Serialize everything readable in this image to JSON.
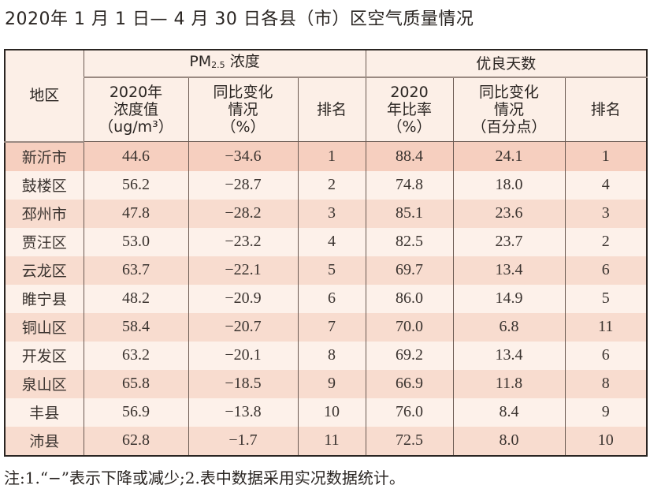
{
  "title": "2020年 1 月 1 日— 4 月 30 日各县（市）区空气质量情况",
  "header": {
    "region": "地区",
    "pm_group": "PM",
    "pm_sub": "2.5",
    "pm_suffix": " 浓度",
    "good_group": "优良天数",
    "pm_cols": [
      "2020年",
      "浓度值",
      "（ug/m³）",
      "同比变化",
      "情况",
      "（%）",
      "排名"
    ],
    "good_cols": [
      "2020",
      "年比率",
      "（%）",
      "同比变化",
      "情况",
      "（百分点）",
      "排名"
    ]
  },
  "rows": [
    [
      "新沂市",
      "44.6",
      "−34.6",
      "1",
      "88.4",
      "24.1",
      "1"
    ],
    [
      "鼓楼区",
      "56.2",
      "−28.7",
      "2",
      "74.8",
      "18.0",
      "4"
    ],
    [
      "邳州市",
      "47.8",
      "−28.2",
      "3",
      "85.1",
      "23.6",
      "3"
    ],
    [
      "贾汪区",
      "53.0",
      "−23.2",
      "4",
      "82.5",
      "23.7",
      "2"
    ],
    [
      "云龙区",
      "63.7",
      "−22.1",
      "5",
      "69.7",
      "13.4",
      "6"
    ],
    [
      "睢宁县",
      "48.2",
      "−20.9",
      "6",
      "86.0",
      "14.9",
      "5"
    ],
    [
      "铜山区",
      "58.4",
      "−20.7",
      "7",
      "70.0",
      "6.8",
      "11"
    ],
    [
      "开发区",
      "63.2",
      "−20.1",
      "8",
      "69.2",
      "13.4",
      "6"
    ],
    [
      "泉山区",
      "65.8",
      "−18.5",
      "9",
      "66.9",
      "11.8",
      "8"
    ],
    [
      "丰县",
      "56.9",
      "−13.8",
      "10",
      "76.0",
      "8.4",
      "9"
    ],
    [
      "沛县",
      "62.8",
      "−1.7",
      "11",
      "72.5",
      "8.0",
      "10"
    ]
  ],
  "note": "注:1.“−”表示下降或减少;2.表中数据采用实况数据统计。"
}
